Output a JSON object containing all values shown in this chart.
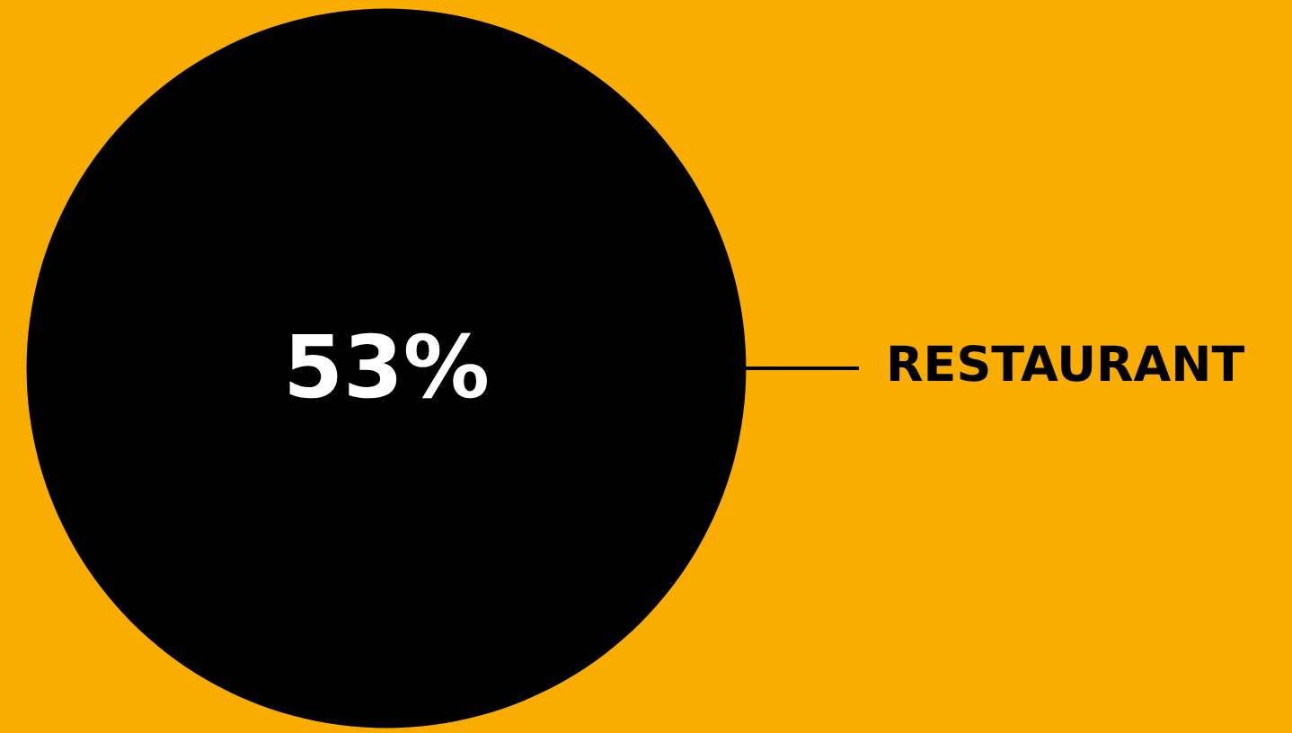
{
  "chart_data": {
    "type": "other",
    "categories": [
      "RESTAURANT"
    ],
    "values": [
      53
    ],
    "value_labels": [
      "53%"
    ],
    "colors": [
      "#000000"
    ]
  }
}
